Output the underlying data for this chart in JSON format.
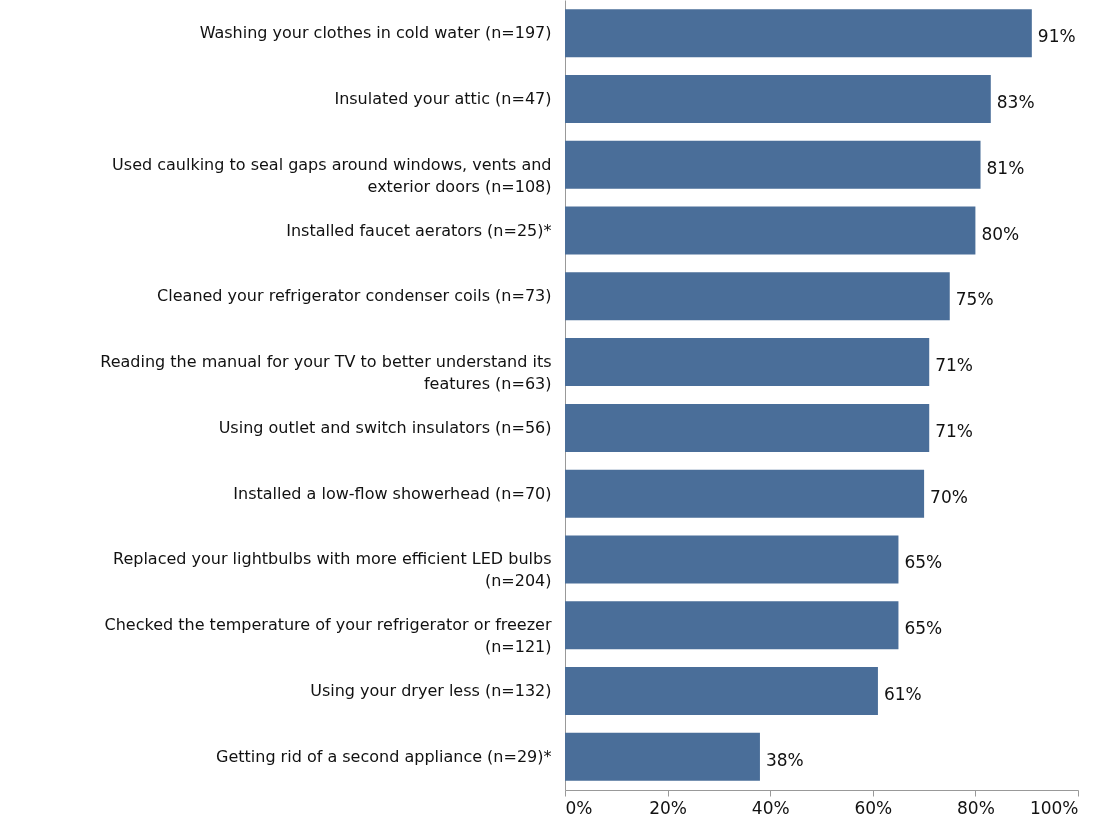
{
  "chart_data": {
    "type": "bar",
    "orientation": "horizontal",
    "categories": [
      "Washing your clothes in cold water (n=197)",
      "Insulated your attic (n=47)",
      "Used caulking to seal gaps around windows, vents and exterior doors (n=108)",
      "Installed faucet aerators (n=25)*",
      "Cleaned your refrigerator condenser coils (n=73)",
      "Reading the manual for your TV to better understand its features (n=63)",
      "Using outlet and switch insulators (n=56)",
      "Installed a low-flow showerhead (n=70)",
      "Replaced your lightbulbs with more efficient LED bulbs (n=204)",
      "Checked the temperature of your refrigerator or freezer (n=121)",
      "Using your dryer less (n=132)",
      "Getting rid of a second appliance (n=29)*"
    ],
    "values": [
      91,
      83,
      81,
      80,
      75,
      71,
      71,
      70,
      65,
      65,
      61,
      38
    ],
    "value_labels": [
      "91%",
      "83%",
      "81%",
      "80%",
      "75%",
      "71%",
      "71%",
      "70%",
      "65%",
      "65%",
      "61%",
      "38%"
    ],
    "color": "#4a6e99",
    "xlim": [
      0,
      100
    ],
    "xticks": [
      {
        "value": 0,
        "label": "0%"
      },
      {
        "value": 20,
        "label": "20%"
      },
      {
        "value": 40,
        "label": "40%"
      },
      {
        "value": 60,
        "label": "60%"
      },
      {
        "value": 80,
        "label": "80%"
      },
      {
        "value": 100,
        "label": "100%"
      }
    ]
  }
}
